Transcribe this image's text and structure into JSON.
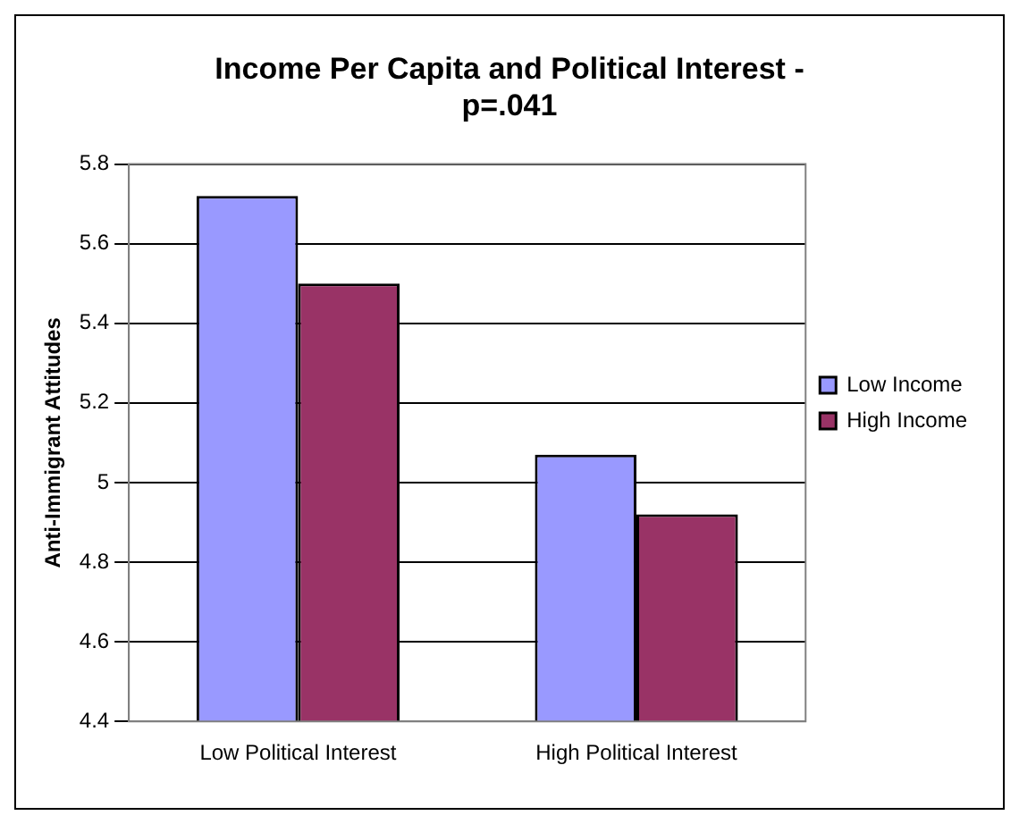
{
  "chart_data": {
    "type": "bar",
    "title": "Income Per Capita and Political Interest - p=.041",
    "ylabel": "Anti-Immigrant Attitudes",
    "categories": [
      "Low Political Interest",
      "High Political Interest"
    ],
    "series": [
      {
        "name": "Low Income",
        "color": "#9999ff",
        "values": [
          5.72,
          5.07
        ]
      },
      {
        "name": "High Income",
        "color": "#993366",
        "values": [
          5.5,
          4.92
        ]
      }
    ],
    "ylim": [
      4.4,
      5.8
    ],
    "yticks": [
      4.4,
      4.6,
      4.8,
      5,
      5.2,
      5.4,
      5.6,
      5.8
    ],
    "grid": "y",
    "legend": "right"
  }
}
